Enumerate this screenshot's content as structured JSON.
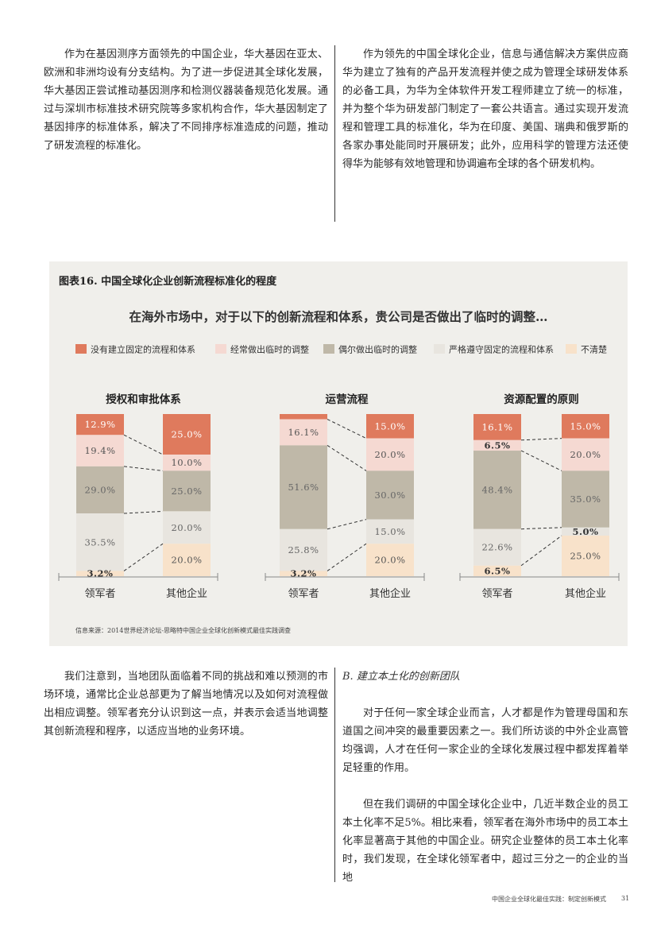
{
  "top_left": {
    "paragraph": "作为在基因测序方面领先的中国企业，华大基因在亚太、欧洲和非洲均设有分支结构。为了进一步促进其全球化发展，华大基因正尝试推动基因测序和检测仪器装备规范化发展。通过与深圳市标准技术研究院等多家机构合作，华大基因制定了基因排序的标准体系，解决了不同排序标准造成的问题，推动了研发流程的标准化。"
  },
  "top_right": {
    "paragraph": "作为领先的中国全球化企业，信息与通信解决方案供应商华为建立了独有的产品开发流程并使之成为管理全球研发体系的必备工具，为华为全体软件开发工程师建立了统一的标准，并为整个华为研发部门制定了一套公共语言。通过实现开发流程和管理工具的标准化，华为在印度、美国、瑞典和俄罗斯的各家办事处能同时开展研发；此外，应用科学的管理方法还使得华为能够有效地管理和协调遍布全球的各个研发机构。"
  },
  "figure": {
    "title": "图表16. 中国全球化企业创新流程标准化的程度",
    "question": "在海外市场中，对于以下的创新流程和体系，贵公司是否做出了临时的调整…",
    "source": "信息来源：2014世界经济论坛-思略特中国企业全球化创新模式最佳实践调查"
  },
  "chart_data": {
    "type": "bar",
    "subtype": "stacked-100",
    "legend_position": "top",
    "colors": [
      "#df7a5d",
      "#f5d9d2",
      "#bfb8a8",
      "#e8e5df",
      "#f8e2ca"
    ],
    "legend": [
      "没有建立固定的流程和体系",
      "经常做出临时的调整",
      "偶尔做出临时的调整",
      "严格遵守固定的流程和体系",
      "不清楚"
    ],
    "panels": [
      {
        "title": "授权和审批体系",
        "categories": [
          "领军者",
          "其他企业"
        ],
        "series": [
          {
            "name": "没有建立固定的流程和体系",
            "values": [
              12.9,
              25.0
            ],
            "labels": [
              "12.9%",
              "25.0%"
            ]
          },
          {
            "name": "经常做出临时的调整",
            "values": [
              19.4,
              10.0
            ],
            "labels": [
              "19.4%",
              "10.0%"
            ]
          },
          {
            "name": "偶尔做出临时的调整",
            "values": [
              29.0,
              25.0
            ],
            "labels": [
              "29.0%",
              "25.0%"
            ]
          },
          {
            "name": "严格遵守固定的流程和体系",
            "values": [
              35.5,
              20.0
            ],
            "labels": [
              "35.5%",
              "20.0%"
            ]
          },
          {
            "name": "不清楚",
            "values": [
              3.2,
              20.0
            ],
            "labels": [
              "3.2%",
              "20.0%"
            ]
          }
        ]
      },
      {
        "title": "运营流程",
        "categories": [
          "领军者",
          "其他企业"
        ],
        "series": [
          {
            "name": "没有建立固定的流程和体系",
            "values": [
              3.2,
              15.0
            ],
            "labels": [
              "3.2%",
              "15.0%"
            ]
          },
          {
            "name": "经常做出临时的调整",
            "values": [
              16.1,
              20.0
            ],
            "labels": [
              "16.1%",
              "20.0%"
            ]
          },
          {
            "name": "偶尔做出临时的调整",
            "values": [
              51.6,
              30.0
            ],
            "labels": [
              "51.6%",
              "30.0%"
            ]
          },
          {
            "name": "严格遵守固定的流程和体系",
            "values": [
              25.8,
              15.0
            ],
            "labels": [
              "25.8%",
              "15.0%"
            ]
          },
          {
            "name": "不清楚",
            "values": [
              3.2,
              20.0
            ],
            "labels": [
              "3.2%",
              "20.0%"
            ]
          }
        ]
      },
      {
        "title": "资源配置的原则",
        "categories": [
          "领军者",
          "其他企业"
        ],
        "series": [
          {
            "name": "没有建立固定的流程和体系",
            "values": [
              16.1,
              15.0
            ],
            "labels": [
              "16.1%",
              "15.0%"
            ]
          },
          {
            "name": "经常做出临时的调整",
            "values": [
              6.5,
              20.0
            ],
            "labels": [
              "6.5%",
              "20.0%"
            ]
          },
          {
            "name": "偶尔做出临时的调整",
            "values": [
              48.4,
              35.0
            ],
            "labels": [
              "48.4%",
              "35.0%"
            ]
          },
          {
            "name": "严格遵守固定的流程和体系",
            "values": [
              22.6,
              5.0
            ],
            "labels": [
              "22.6%",
              "5.0%"
            ]
          },
          {
            "name": "不清楚",
            "values": [
              6.5,
              25.0
            ],
            "labels": [
              "6.5%",
              "25.0%"
            ]
          }
        ]
      }
    ]
  },
  "bottom_left": {
    "paragraph": "我们注意到，当地团队面临着不同的挑战和难以预测的市场环境，通常比企业总部更为了解当地情况以及如何对流程做出相应调整。领军者充分认识到这一点，并表示会适当地调整其创新流程和程序，以适应当地的业务环境。"
  },
  "bottom_right": {
    "subheading": "B. 建立本土化的创新团队",
    "paragraph1": "对于任何一家全球企业而言，人才都是作为管理母国和东道国之间冲突的最重要因素之一。我们所访谈的中外企业高管均强调，人才在任何一家企业的全球化发展过程中都发挥着举足轻重的作用。",
    "paragraph2": "但在我们调研的中国全球化企业中，几近半数企业的员工本土化率不足5%。相比来看，领军者在海外市场中的员工本土化率显著高于其他的中国企业。研究企业整体的员工本土化率时，我们发现，在全球化领军者中，超过三分之一的企业的当地"
  },
  "footer": {
    "text": "中国企业全球化最佳实践：制定创新模式",
    "page": "31"
  }
}
